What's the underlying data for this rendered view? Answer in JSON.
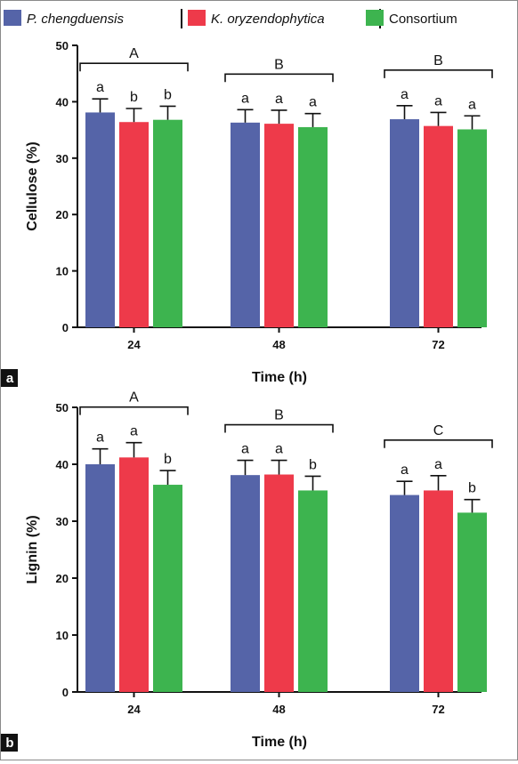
{
  "legend": [
    {
      "name": "P. chengduensis",
      "italic": true,
      "color": "#5564a8"
    },
    {
      "name": "K. oryzendophytica",
      "italic": true,
      "color": "#ee3a4a"
    },
    {
      "name": "Consortium",
      "italic": false,
      "color": "#3db44f"
    }
  ],
  "chart_data": [
    {
      "type": "bar",
      "panel_label": "a",
      "categories": [
        "24",
        "48",
        "72"
      ],
      "xlabel": "Time (h)",
      "ylabel": "Cellulose (%)",
      "ylim": [
        0,
        50
      ],
      "yticks": [
        0,
        10,
        20,
        30,
        40,
        50
      ],
      "series": [
        {
          "name": "P. chengduensis",
          "values": [
            38.1,
            36.3,
            36.9
          ],
          "errors": [
            2.4,
            2.3,
            2.4
          ],
          "letters": [
            "a",
            "a",
            "a"
          ]
        },
        {
          "name": "K. oryzendophytica",
          "values": [
            36.4,
            36.1,
            35.7
          ],
          "errors": [
            2.4,
            2.4,
            2.4
          ],
          "letters": [
            "b",
            "a",
            "a"
          ]
        },
        {
          "name": "Consortium",
          "values": [
            36.8,
            35.5,
            35.1
          ],
          "errors": [
            2.4,
            2.4,
            2.4
          ],
          "letters": [
            "b",
            "a",
            "a"
          ]
        }
      ],
      "group_letters": [
        "A",
        "B",
        "B"
      ],
      "grid": false
    },
    {
      "type": "bar",
      "panel_label": "b",
      "categories": [
        "24",
        "48",
        "72"
      ],
      "xlabel": "Time (h)",
      "ylabel": "Lignin (%)",
      "ylim": [
        0,
        50
      ],
      "yticks": [
        0,
        10,
        20,
        30,
        40,
        50
      ],
      "series": [
        {
          "name": "P. chengduensis",
          "values": [
            40.0,
            38.1,
            34.6
          ],
          "errors": [
            2.7,
            2.6,
            2.4
          ],
          "letters": [
            "a",
            "a",
            "a"
          ]
        },
        {
          "name": "K. oryzendophytica",
          "values": [
            41.2,
            38.2,
            35.4
          ],
          "errors": [
            2.6,
            2.5,
            2.6
          ],
          "letters": [
            "a",
            "a",
            "a"
          ]
        },
        {
          "name": "Consortium",
          "values": [
            36.4,
            35.4,
            31.5
          ],
          "errors": [
            2.5,
            2.5,
            2.3
          ],
          "letters": [
            "b",
            "b",
            "b"
          ]
        }
      ],
      "group_letters": [
        "A",
        "B",
        "C"
      ],
      "grid": false
    }
  ]
}
